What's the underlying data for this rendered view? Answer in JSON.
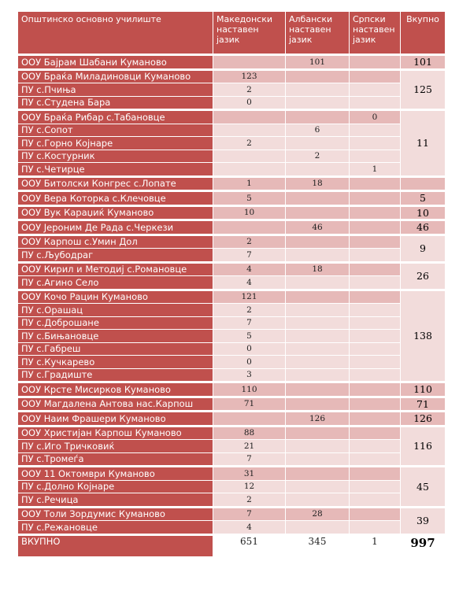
{
  "header": [
    "Општинско основно училиште",
    "Македонски наставен јазик",
    "Албански наставен јазик",
    "Српски наставен јазик",
    "Вкупно"
  ],
  "groups": [
    {
      "rows": [
        [
          "ООУ Бајрам Шабани Куманово",
          null,
          101,
          null
        ]
      ],
      "total": 101
    },
    {
      "rows": [
        [
          "ООУ Браќа Миладиновци Куманово",
          123,
          null,
          null
        ],
        [
          "ПУ с.Пчиња",
          2,
          null,
          null
        ],
        [
          "ПУ с.Студена Бара",
          0,
          null,
          null
        ]
      ],
      "total": 125
    },
    {
      "rows": [
        [
          "ООУ Браќа Рибар с.Табановце",
          null,
          null,
          0
        ],
        [
          "ПУ с.Сопот",
          null,
          6,
          null
        ],
        [
          "ПУ с.Горно Којнаре",
          2,
          null,
          null
        ],
        [
          "ПУ с.Костурник",
          null,
          2,
          null
        ],
        [
          "ПУ с.Четирце",
          null,
          null,
          1
        ]
      ],
      "total": 11
    },
    {
      "rows": [
        [
          "ООУ Битолски Конгрес с.Лопате",
          1,
          18,
          null
        ]
      ],
      "total": null
    },
    {
      "rows": [
        [
          "ООУ Вера Которка с.Клечовце",
          5,
          null,
          null
        ]
      ],
      "total": 5
    },
    {
      "rows": [
        [
          "ООУ Вук Караџиќ Куманово",
          10,
          null,
          null
        ]
      ],
      "total": 10
    },
    {
      "rows": [
        [
          "ООУ Јероним Де Рада с.Черкези",
          null,
          46,
          null
        ]
      ],
      "total": 46
    },
    {
      "rows": [
        [
          "ООУ Карпош с.Умин Дол",
          2,
          null,
          null
        ],
        [
          "ПУ с.Љубодраг",
          7,
          null,
          null
        ]
      ],
      "total": 9
    },
    {
      "rows": [
        [
          "ООУ Кирил и Методиј с.Романовце",
          4,
          18,
          null
        ],
        [
          "ПУ с.Агино Село",
          4,
          null,
          null
        ]
      ],
      "total": 26
    },
    {
      "rows": [
        [
          "ООУ Кочо Рацин Куманово",
          121,
          null,
          null
        ],
        [
          "ПУ с.Орашац",
          2,
          null,
          null
        ],
        [
          "ПУ с.Доброшане",
          7,
          null,
          null
        ],
        [
          "ПУ с.Бињановце",
          5,
          null,
          null
        ],
        [
          "ПУ с.Габреш",
          0,
          null,
          null
        ],
        [
          "ПУ с.Кучкарево",
          0,
          null,
          null
        ],
        [
          "ПУ с.Градиште",
          3,
          null,
          null
        ]
      ],
      "total": 138
    },
    {
      "rows": [
        [
          "ООУ Крсте Мисирков Куманово",
          110,
          null,
          null
        ]
      ],
      "total": 110
    },
    {
      "rows": [
        [
          "ООУ Магдалена Антова нас.Карпош",
          71,
          null,
          null
        ]
      ],
      "total": 71
    },
    {
      "rows": [
        [
          "ООУ Наим Фрашери Куманово",
          null,
          126,
          null
        ]
      ],
      "total": 126
    },
    {
      "rows": [
        [
          "ООУ Христијан Карпош Куманово",
          88,
          null,
          null
        ],
        [
          "ПУ с.Иго Тричковиќ",
          21,
          null,
          null
        ],
        [
          "ПУ с.Тромеѓа",
          7,
          null,
          null
        ]
      ],
      "total": 116
    },
    {
      "rows": [
        [
          "ООУ 11 Октомври Куманово",
          31,
          null,
          null
        ],
        [
          "ПУ с.Долно Којнаре",
          12,
          null,
          null
        ],
        [
          "ПУ с.Речица",
          2,
          null,
          null
        ]
      ],
      "total": 45
    },
    {
      "rows": [
        [
          "ООУ Толи Зордумис Куманово",
          7,
          28,
          null
        ],
        [
          "ПУ с.Режановце",
          4,
          null,
          null
        ]
      ],
      "total": 39
    }
  ],
  "total_row": [
    "ВКУПНО",
    651,
    345,
    1,
    997
  ]
}
